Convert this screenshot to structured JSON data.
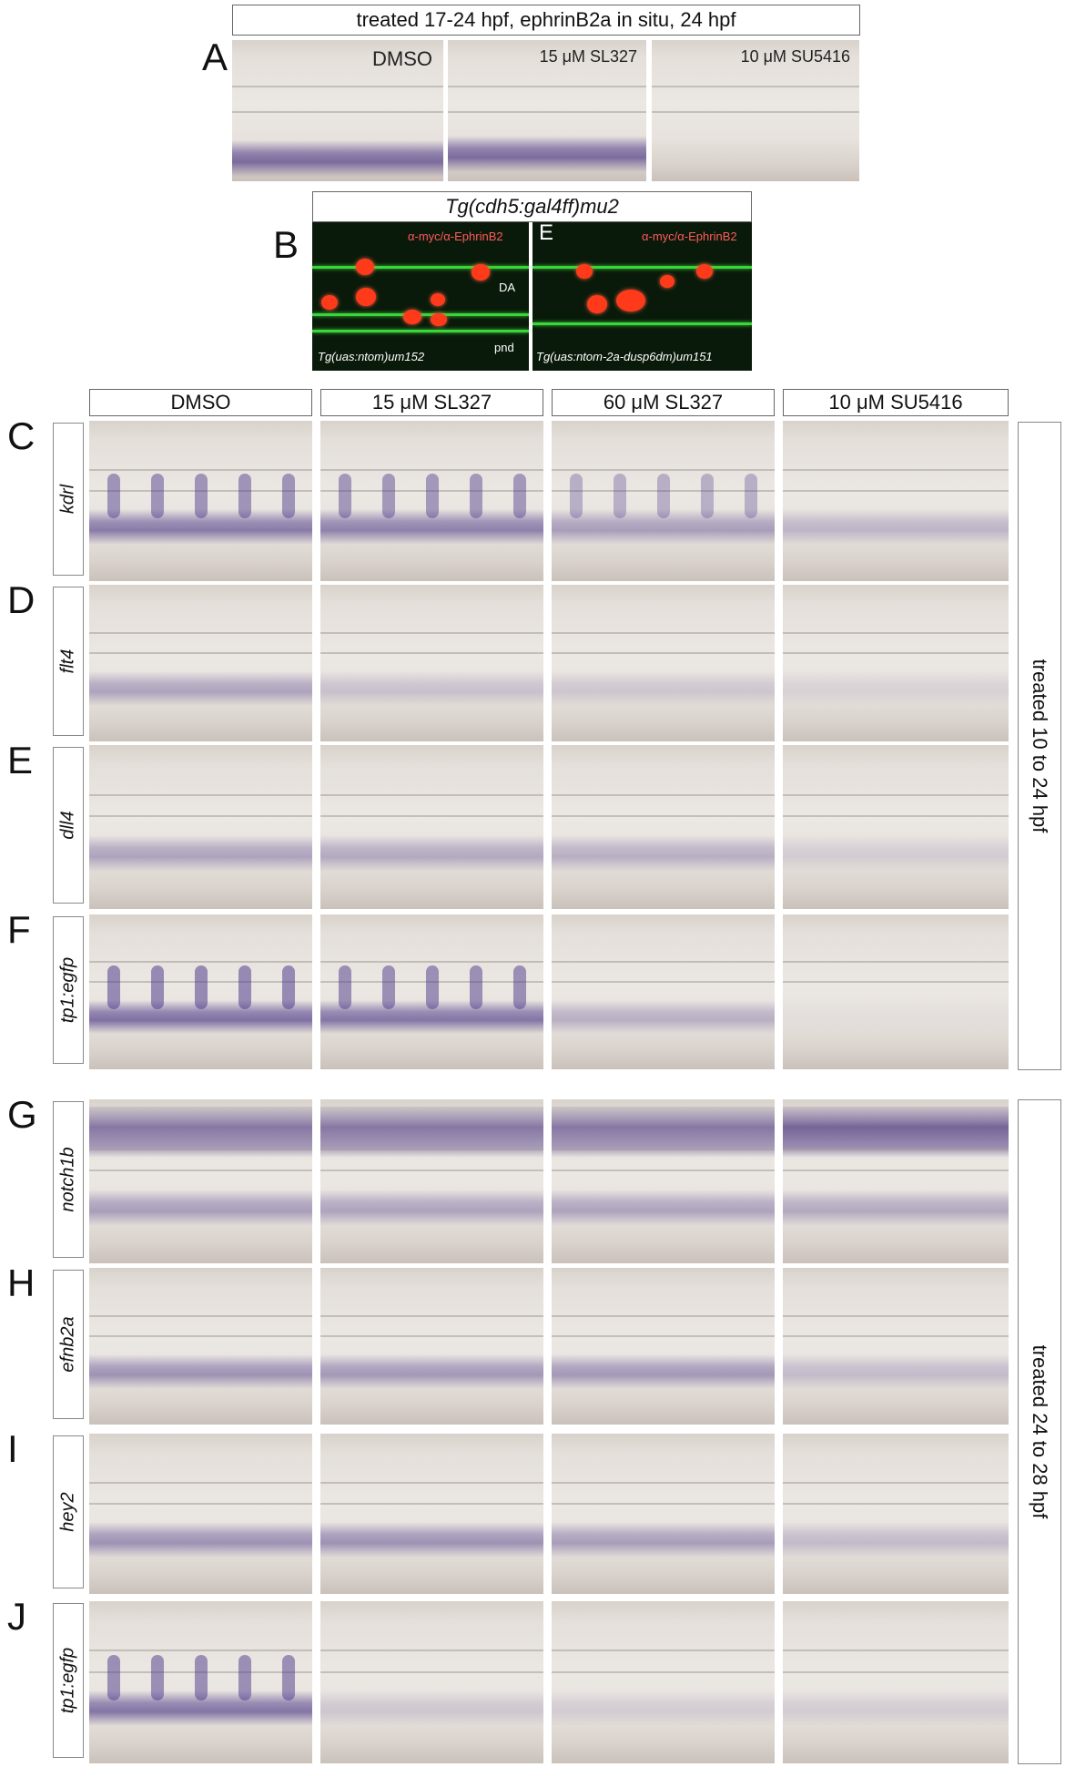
{
  "panelA": {
    "title": "treated 17-24 hpf, ephrinB2a in situ, 24 hpf",
    "letter": "A",
    "labels": [
      "DMSO",
      "15 μM SL327",
      "10 μM SU5416"
    ]
  },
  "panelB": {
    "title": "Tg(cdh5:gal4ff)mu2",
    "letterB": "B",
    "letterE": "E",
    "stain_left": "α-myc/α-EphrinB2",
    "stain_right": "α-myc/α-EphrinB2",
    "da": "DA",
    "pnd": "pnd",
    "genotype_left": "Tg(uas:ntom)um152",
    "genotype_right": "Tg(uas:ntom-2a-dusp6dm)um151"
  },
  "columns": [
    "DMSO",
    "15 μM SL327",
    "60 μM SL327",
    "10 μM SU5416"
  ],
  "rows": [
    {
      "letter": "C",
      "gene": "kdrl"
    },
    {
      "letter": "D",
      "gene": "flt4"
    },
    {
      "letter": "E",
      "gene": "dll4"
    },
    {
      "letter": "F",
      "gene": "tp1:egfp"
    },
    {
      "letter": "G",
      "gene": "notch1b"
    },
    {
      "letter": "H",
      "gene": "efnb2a"
    },
    {
      "letter": "I",
      "gene": "hey2"
    },
    {
      "letter": "J",
      "gene": "tp1:egfp"
    }
  ],
  "side_labels": [
    "treated 10 to 24 hpf",
    "treated 24 to 28 hpf"
  ],
  "colors": {
    "stain": "#50408c",
    "egfp_green": "#3bd43b",
    "myc_red": "#ff3a1a"
  }
}
